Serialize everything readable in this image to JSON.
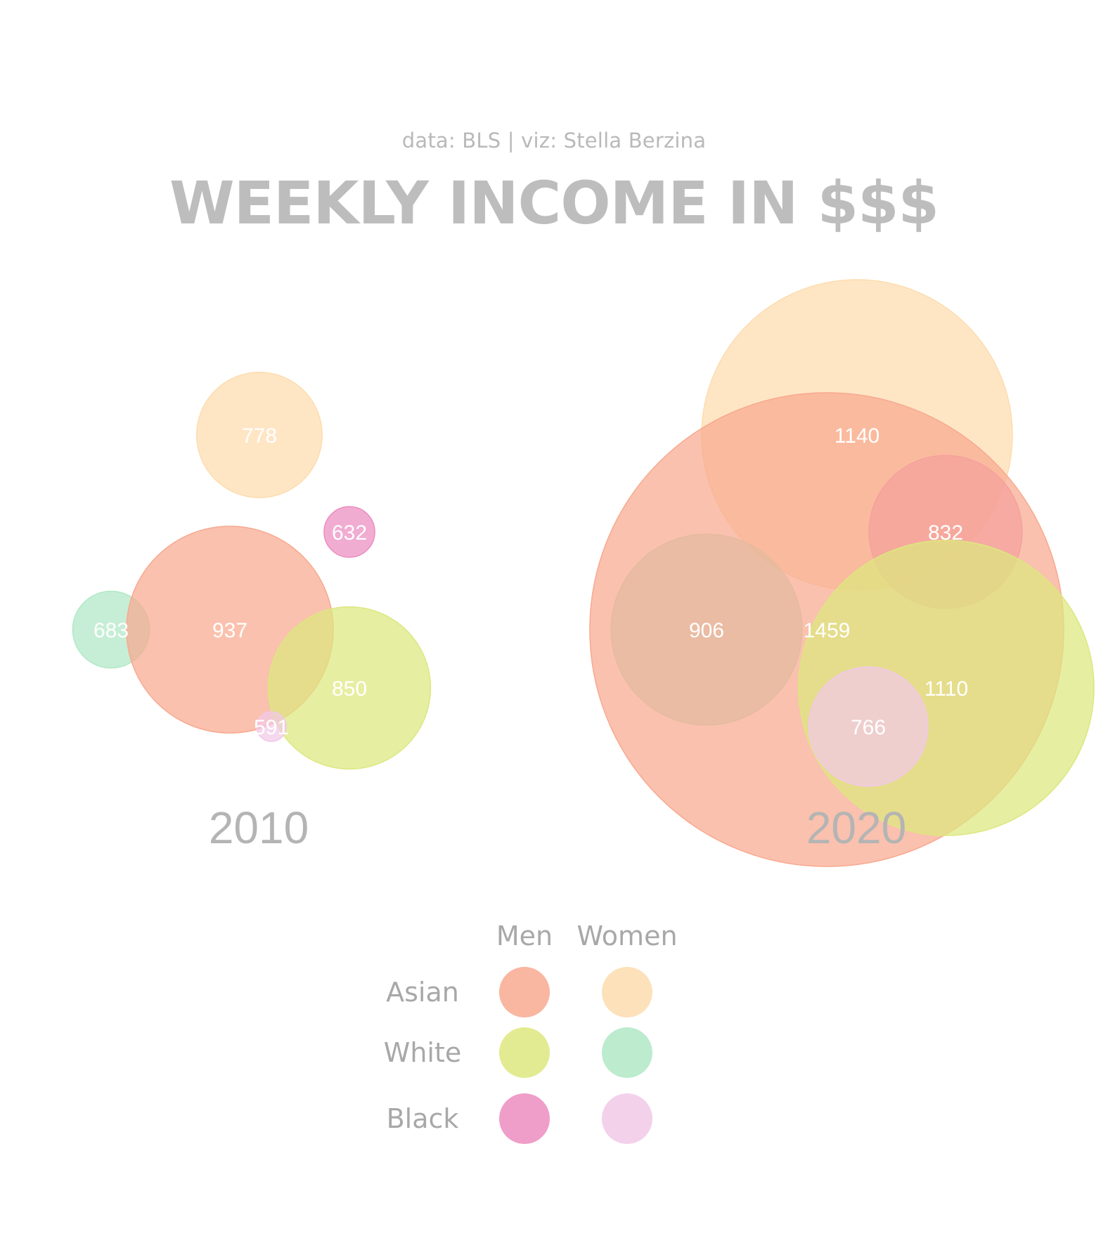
{
  "credit": "data: BLS | viz: Stella Berzina",
  "title": "WEEKLY INCOME IN $$$",
  "chart_data": {
    "type": "bubble",
    "panels": [
      {
        "year": "2010",
        "bubbles": [
          {
            "group": "Asian",
            "sex": "Women",
            "value": 778
          },
          {
            "group": "Black",
            "sex": "Men",
            "value": 632
          },
          {
            "group": "White",
            "sex": "Women",
            "value": 683
          },
          {
            "group": "Asian",
            "sex": "Men",
            "value": 937
          },
          {
            "group": "White",
            "sex": "Men",
            "value": 850
          },
          {
            "group": "Black",
            "sex": "Women",
            "value": 591
          }
        ]
      },
      {
        "year": "2020",
        "bubbles": [
          {
            "group": "Asian",
            "sex": "Women",
            "value": 1140
          },
          {
            "group": "Black",
            "sex": "Men",
            "value": 832
          },
          {
            "group": "White",
            "sex": "Women",
            "value": 906
          },
          {
            "group": "Asian",
            "sex": "Men",
            "value": 1459
          },
          {
            "group": "White",
            "sex": "Men",
            "value": 1110
          },
          {
            "group": "Black",
            "sex": "Women",
            "value": 766
          }
        ]
      }
    ],
    "legend": {
      "columns": [
        "Men",
        "Women"
      ],
      "rows": [
        "Asian",
        "White",
        "Black"
      ]
    },
    "colors": {
      "Asian-Men": "#f8a98f",
      "Asian-Women": "#fddcae",
      "White-Men": "#dde77e",
      "White-Women": "#b0e8c6",
      "Black-Men": "#ec8cc0",
      "Black-Women": "#f1c9e8"
    }
  }
}
